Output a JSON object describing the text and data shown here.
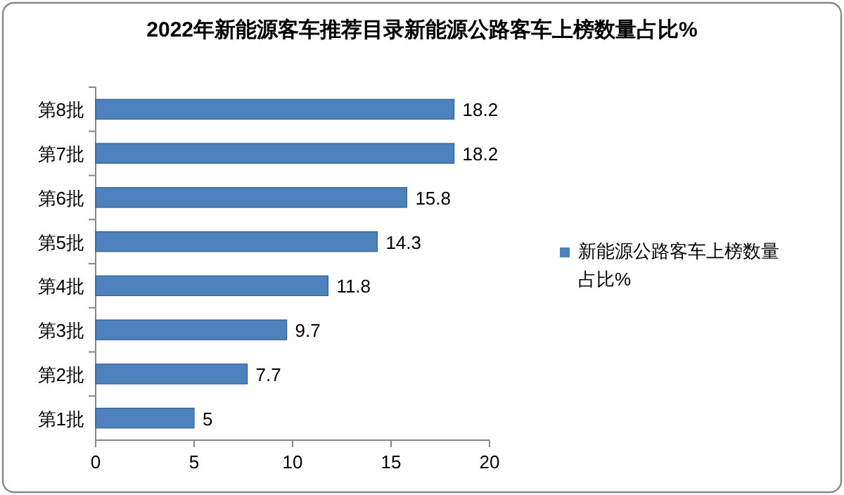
{
  "chart_data": {
    "type": "bar",
    "orientation": "horizontal",
    "title": "2022年新能源客车推荐目录新能源公路客车上榜数量占比%",
    "categories": [
      "第8批",
      "第7批",
      "第6批",
      "第5批",
      "第4批",
      "第3批",
      "第2批",
      "第1批"
    ],
    "series": [
      {
        "name": "新能源公路客车上榜数量占比%",
        "color": "#4f81bd",
        "values": [
          18.2,
          18.2,
          15.8,
          14.3,
          11.8,
          9.7,
          7.7,
          5
        ]
      }
    ],
    "xlim": [
      0,
      20
    ],
    "xticks": [
      0,
      5,
      10,
      15,
      20
    ],
    "data_labels": true,
    "legend": "right"
  }
}
